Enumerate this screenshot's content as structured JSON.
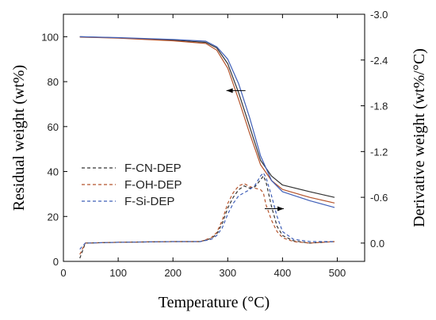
{
  "chart_data": {
    "type": "line",
    "xlabel": "Temperature (°C)",
    "ylabel": "Residual weight (wt%)",
    "y2label": "Derivative weight (wt%/°C)",
    "xlim": [
      0,
      550
    ],
    "ylim": [
      0,
      110
    ],
    "y2lim": [
      0.24,
      -3.0
    ],
    "xticks": [
      "0",
      "100",
      "200",
      "300",
      "400",
      "500"
    ],
    "yticks": [
      "0",
      "20",
      "40",
      "60",
      "80",
      "100"
    ],
    "y2ticks": [
      "0.0",
      "-0.6",
      "-1.2",
      "-1.8",
      "-2.4",
      "-3.0"
    ],
    "grid": false,
    "legend_position": "lower-left",
    "legend": [
      "F-CN-DEP",
      "F-OH-DEP",
      "F-Si-DEP"
    ],
    "series": [
      {
        "name": "F-CN-DEP",
        "kind": "TG",
        "axis": "left",
        "style": "solid",
        "color": "#333333",
        "x": [
          30,
          100,
          200,
          260,
          280,
          300,
          320,
          340,
          360,
          380,
          400,
          450,
          495
        ],
        "y": [
          100,
          99.5,
          98.5,
          97.5,
          95,
          88,
          75,
          60,
          45,
          38,
          34,
          31,
          28.5
        ]
      },
      {
        "name": "F-OH-DEP",
        "kind": "TG",
        "axis": "left",
        "style": "solid",
        "color": "#b5542c",
        "x": [
          30,
          100,
          200,
          260,
          280,
          300,
          320,
          340,
          360,
          380,
          400,
          450,
          495
        ],
        "y": [
          99.8,
          99.4,
          98.2,
          97,
          94,
          86,
          72,
          57,
          43,
          36,
          32,
          28.5,
          26
        ]
      },
      {
        "name": "F-Si-DEP",
        "kind": "TG",
        "axis": "left",
        "style": "solid",
        "color": "#3f5fb8",
        "x": [
          30,
          100,
          200,
          260,
          280,
          300,
          320,
          340,
          360,
          380,
          400,
          450,
          495
        ],
        "y": [
          100,
          99.6,
          98.8,
          98,
          95.5,
          90,
          79,
          64,
          47,
          36,
          31,
          27,
          24
        ]
      },
      {
        "name": "F-CN-DEP",
        "kind": "DTG",
        "axis": "right",
        "style": "dashed",
        "color": "#333333",
        "x": [
          30,
          40,
          100,
          200,
          250,
          270,
          280,
          290,
          300,
          310,
          320,
          330,
          340,
          350,
          360,
          365,
          370,
          380,
          390,
          400,
          420,
          450,
          495
        ],
        "y": [
          0.2,
          0.0,
          -0.01,
          -0.02,
          -0.02,
          -0.06,
          -0.12,
          -0.26,
          -0.46,
          -0.6,
          -0.7,
          -0.75,
          -0.72,
          -0.74,
          -0.83,
          -0.88,
          -0.8,
          -0.48,
          -0.22,
          -0.1,
          -0.03,
          0.0,
          -0.02
        ]
      },
      {
        "name": "F-OH-DEP",
        "kind": "DTG",
        "axis": "right",
        "style": "dashed",
        "color": "#b5542c",
        "x": [
          30,
          40,
          100,
          200,
          250,
          270,
          280,
          290,
          300,
          310,
          320,
          330,
          340,
          350,
          360,
          365,
          370,
          380,
          390,
          400,
          420,
          450,
          495
        ],
        "y": [
          0.15,
          0.0,
          -0.01,
          -0.02,
          -0.02,
          -0.07,
          -0.14,
          -0.3,
          -0.52,
          -0.66,
          -0.75,
          -0.78,
          -0.74,
          -0.72,
          -0.7,
          -0.66,
          -0.5,
          -0.3,
          -0.15,
          -0.07,
          -0.02,
          0.0,
          -0.02
        ]
      },
      {
        "name": "F-Si-DEP",
        "kind": "DTG",
        "axis": "right",
        "style": "dashed",
        "color": "#3f5fb8",
        "x": [
          30,
          40,
          100,
          200,
          250,
          270,
          280,
          290,
          300,
          310,
          320,
          330,
          340,
          350,
          360,
          365,
          370,
          380,
          390,
          400,
          420,
          450,
          495
        ],
        "y": [
          0.08,
          0.0,
          -0.01,
          -0.02,
          -0.02,
          -0.05,
          -0.1,
          -0.2,
          -0.38,
          -0.52,
          -0.62,
          -0.66,
          -0.7,
          -0.76,
          -0.88,
          -0.92,
          -0.86,
          -0.62,
          -0.35,
          -0.15,
          -0.05,
          -0.02,
          -0.02
        ]
      }
    ],
    "annotations": [
      {
        "type": "arrow",
        "direction": "left",
        "points_to": "left",
        "x": 315,
        "y": 76
      },
      {
        "type": "arrow",
        "direction": "right",
        "points_to": "right",
        "x": 385,
        "y": -0.45
      }
    ]
  }
}
